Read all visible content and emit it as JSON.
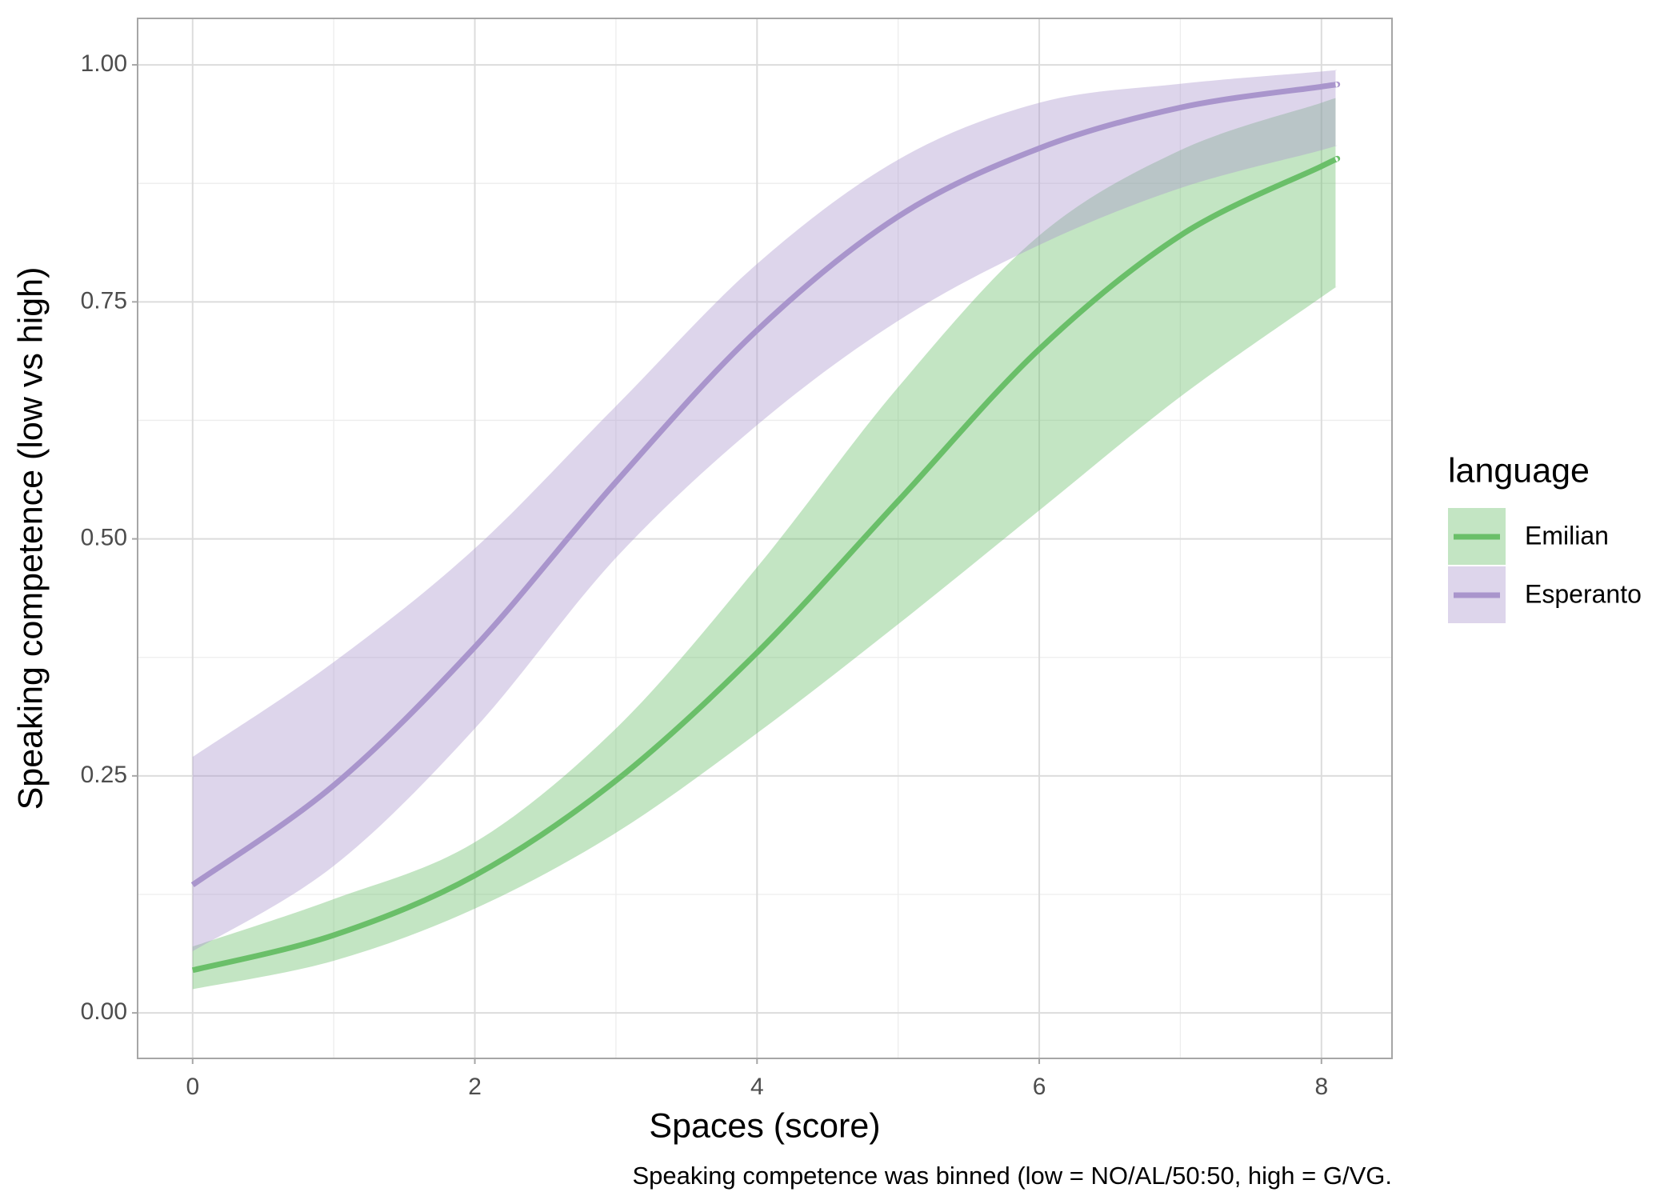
{
  "chart_data": {
    "type": "line",
    "x_label": "Spaces (score)",
    "y_label": "Speaking competence (low vs high)",
    "caption": "Speaking competence was binned (low = NO/AL/50:50, high = G/VG.",
    "legend_title": "language",
    "legend": "right",
    "grid": true,
    "minor_grid": true,
    "x": [
      0,
      1,
      2,
      3,
      4,
      5,
      6,
      7,
      8,
      8.1
    ],
    "series": [
      {
        "name": "Emilian",
        "color": "#6abf69",
        "values": [
          0.045,
          0.082,
          0.145,
          0.245,
          0.38,
          0.54,
          0.7,
          0.82,
          0.893,
          0.9
        ],
        "lower": [
          0.025,
          0.055,
          0.11,
          0.19,
          0.295,
          0.41,
          0.53,
          0.65,
          0.755,
          0.765
        ],
        "upper": [
          0.07,
          0.12,
          0.18,
          0.3,
          0.47,
          0.66,
          0.82,
          0.91,
          0.96,
          0.965
        ]
      },
      {
        "name": "Esperanto",
        "color": "#a995cc",
        "values": [
          0.135,
          0.24,
          0.386,
          0.56,
          0.72,
          0.84,
          0.912,
          0.955,
          0.977,
          0.979
        ],
        "lower": [
          0.065,
          0.155,
          0.3,
          0.48,
          0.62,
          0.73,
          0.81,
          0.87,
          0.91,
          0.915
        ],
        "upper": [
          0.27,
          0.37,
          0.49,
          0.64,
          0.79,
          0.9,
          0.96,
          0.98,
          0.993,
          0.995
        ]
      }
    ],
    "xlim": [
      -0.39,
      8.5
    ],
    "ylim": [
      -0.048,
      1.049
    ],
    "xticks": [
      0,
      2,
      4,
      6,
      8
    ],
    "yticks": [
      {
        "value": 0,
        "label": "0.00"
      },
      {
        "value": 0.25,
        "label": "0.25"
      },
      {
        "value": 0.5,
        "label": "0.50"
      },
      {
        "value": 0.75,
        "label": "0.75"
      },
      {
        "value": 1,
        "label": "1.00"
      }
    ]
  }
}
